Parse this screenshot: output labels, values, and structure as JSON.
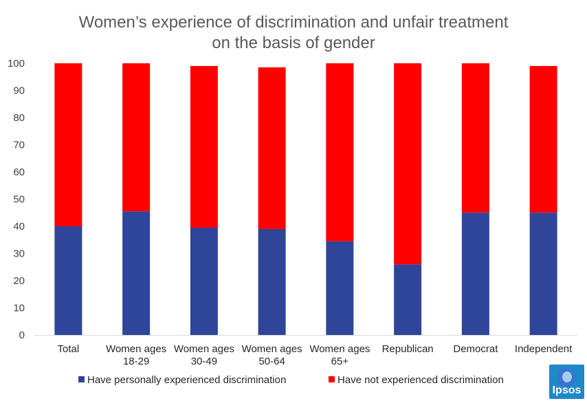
{
  "chart_data": {
    "type": "bar",
    "stacked": true,
    "title": "Women’s experience of discrimination and unfair treatment on the basis of gender",
    "title_lines": [
      "Women’s experience of discrimination and unfair treatment",
      "on the basis of gender"
    ],
    "categories": [
      [
        "Total"
      ],
      [
        "Women ages",
        "18-29"
      ],
      [
        "Women ages",
        "30-49"
      ],
      [
        "Women ages",
        "50-64"
      ],
      [
        "Women ages",
        "65+"
      ],
      [
        "Republican"
      ],
      [
        "Democrat"
      ],
      [
        "Independent"
      ]
    ],
    "series": [
      {
        "name": "Have personally experienced discrimination",
        "color": "#2e4599",
        "values": [
          40,
          45.5,
          39.5,
          39,
          34.5,
          26,
          45,
          45
        ]
      },
      {
        "name": "Have not experienced discrimination",
        "color": "#ff0000",
        "values": [
          60,
          54.5,
          59.5,
          59.5,
          65.5,
          74,
          55,
          54
        ]
      }
    ],
    "ylim": [
      0,
      100
    ],
    "yticks": [
      0,
      10,
      20,
      30,
      40,
      50,
      60,
      70,
      80,
      90,
      100
    ],
    "xlabel": "",
    "ylabel": "",
    "legend_position": "bottom"
  },
  "logo": {
    "text": "Ipsos"
  }
}
